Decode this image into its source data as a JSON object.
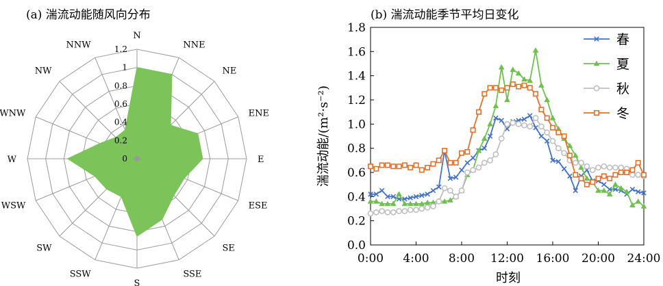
{
  "chart_data": [
    {
      "type": "radar",
      "title": "(a) 湍流动能随风向分布",
      "categories": [
        "N",
        "NNE",
        "NE",
        "ENE",
        "E",
        "ESE",
        "SE",
        "SSE",
        "S",
        "SSW",
        "SW",
        "WSW",
        "W",
        "WNW",
        "NW",
        "NNW"
      ],
      "values": [
        1.0,
        1.0,
        0.52,
        0.72,
        0.72,
        0.56,
        0.57,
        0.72,
        0.85,
        0.45,
        0.47,
        0.5,
        0.76,
        0.44,
        0.33,
        0.34
      ],
      "r_ticks": [
        0,
        0.2,
        0.4,
        0.6,
        0.8,
        1,
        1.2
      ],
      "rlim": [
        0,
        1.2
      ],
      "fill_color": "#7CC35A",
      "grid": true
    },
    {
      "type": "line",
      "title": "(b) 湍流动能季节平均日变化",
      "xlabel": "时刻",
      "ylabel": "湍流动能/(m²·s⁻²)",
      "xlim": [
        0,
        24
      ],
      "ylim": [
        0,
        1.8
      ],
      "x_ticks": [
        "0:00",
        "4:00",
        "8:00",
        "12:00",
        "16:00",
        "20:00",
        "24:00"
      ],
      "y_ticks": [
        "0.0",
        "0.2",
        "0.4",
        "0.6",
        "0.8",
        "1.0",
        "1.2",
        "1.4",
        "1.6",
        "1.8"
      ],
      "legend_position": "top-right",
      "x": [
        0,
        0.5,
        1,
        1.5,
        2,
        2.5,
        3,
        3.5,
        4,
        4.5,
        5,
        5.5,
        6,
        6.5,
        7,
        7.5,
        8,
        8.5,
        9,
        9.5,
        10,
        10.5,
        11,
        11.5,
        12,
        12.5,
        13,
        13.5,
        14,
        14.5,
        15,
        15.5,
        16,
        16.5,
        17,
        17.5,
        18,
        18.5,
        19,
        19.5,
        20,
        20.5,
        21,
        21.5,
        22,
        22.5,
        23,
        23.5,
        24
      ],
      "series": [
        {
          "name": "春",
          "color": "#4472C4",
          "marker": "x",
          "values": [
            0.42,
            0.42,
            0.45,
            0.4,
            0.4,
            0.38,
            0.38,
            0.39,
            0.4,
            0.41,
            0.42,
            0.45,
            0.48,
            0.78,
            0.55,
            0.56,
            0.62,
            0.68,
            0.72,
            0.78,
            0.8,
            0.9,
            1.05,
            1.03,
            0.96,
            1.02,
            1.03,
            1.04,
            1.07,
            0.97,
            0.9,
            0.86,
            0.7,
            0.69,
            0.63,
            0.57,
            0.45,
            0.57,
            0.62,
            0.53,
            0.53,
            0.5,
            0.46,
            0.46,
            0.45,
            0.42,
            0.46,
            0.44,
            0.43
          ]
        },
        {
          "name": "夏",
          "color": "#70C050",
          "marker": "triangle",
          "values": [
            0.36,
            0.36,
            0.34,
            0.34,
            0.34,
            0.42,
            0.34,
            0.34,
            0.34,
            0.34,
            0.35,
            0.35,
            0.36,
            0.36,
            0.37,
            0.4,
            0.45,
            0.58,
            0.62,
            0.78,
            0.88,
            1.0,
            1.15,
            1.47,
            1.2,
            1.45,
            1.42,
            1.37,
            1.36,
            1.61,
            1.32,
            1.2,
            1.05,
            0.96,
            0.88,
            0.82,
            0.74,
            0.64,
            0.55,
            0.52,
            0.45,
            0.45,
            0.42,
            0.5,
            0.47,
            0.44,
            0.33,
            0.36,
            0.32
          ]
        },
        {
          "name": "秋",
          "color": "#BFBFBF",
          "marker": "circle",
          "values": [
            0.26,
            0.27,
            0.28,
            0.27,
            0.27,
            0.28,
            0.28,
            0.29,
            0.29,
            0.3,
            0.31,
            0.32,
            0.36,
            0.47,
            0.45,
            0.4,
            0.45,
            0.6,
            0.62,
            0.64,
            0.68,
            0.7,
            0.75,
            0.88,
            1.0,
            1.01,
            1.0,
            0.99,
            0.98,
            1.05,
            0.98,
            0.93,
            0.86,
            0.8,
            0.76,
            0.7,
            0.68,
            0.68,
            0.65,
            0.62,
            0.64,
            0.65,
            0.64,
            0.64,
            0.64,
            0.63,
            0.58,
            0.58,
            0.57
          ]
        },
        {
          "name": "冬",
          "color": "#E0702A",
          "marker": "square",
          "values": [
            0.65,
            0.63,
            0.66,
            0.66,
            0.65,
            0.65,
            0.66,
            0.64,
            0.66,
            0.62,
            0.64,
            0.67,
            0.7,
            0.78,
            0.68,
            0.68,
            0.76,
            0.77,
            0.95,
            1.1,
            1.25,
            1.3,
            1.3,
            1.28,
            1.3,
            1.33,
            1.31,
            1.32,
            1.3,
            1.25,
            1.12,
            1.05,
            0.97,
            0.93,
            0.9,
            0.74,
            0.58,
            0.55,
            0.5,
            0.52,
            0.55,
            0.57,
            0.55,
            0.58,
            0.6,
            0.6,
            0.62,
            0.68,
            0.58
          ]
        }
      ]
    }
  ]
}
